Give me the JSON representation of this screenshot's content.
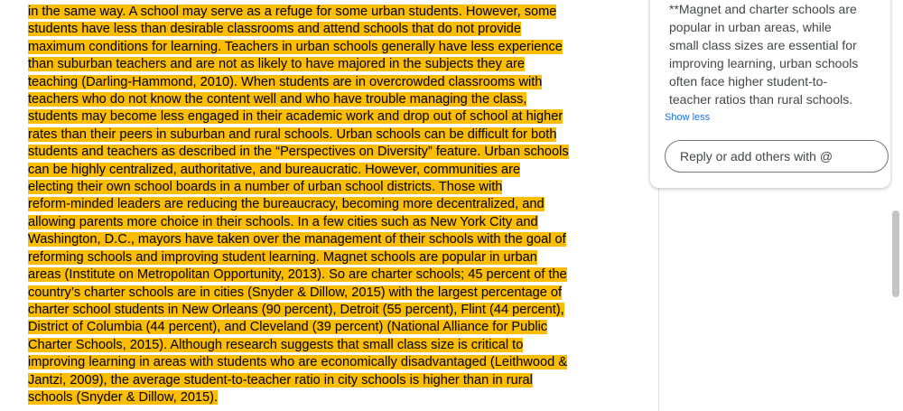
{
  "document": {
    "lines": [
      "in the same way. A school may serve as a refuge for some urban students. However, some",
      "students have less than desirable classrooms and attend schools that do not provide",
      "maximum conditions for learning. Teachers in urban schools generally have less experience",
      "than suburban teachers and are not as likely to have majored in the subjects they are",
      "teaching (Darling-Hammond, 2010). When students are in overcrowded classrooms with",
      "teachers who do not know the content well and who have trouble managing the class,",
      "students may become less engaged in their academic work and drop out of school at higher",
      "rates than their peers in suburban and rural schools. Urban schools can be difficult for both",
      "students and teachers as described in the “Perspectives on Diversity” feature. Urban schools",
      "can be highly centralized, authoritative, and bureaucratic. However, communities are",
      "electing their own school boards in a number of urban school districts. Those with",
      "reform-minded leaders are reducing the bureaucracy, becoming more decentralized, and",
      "allowing parents more choice in their schools. In a few cities such as New York City and",
      "Washington, D.C., mayors have taken over the management of their schools with the goal of",
      "reforming schools and improving student learning. Magnet schools are popular in urban",
      "areas (Institute on Metropolitan Opportunity, 2013). So are charter schools; 45 percent of the",
      "country’s charter schools are in cities (Snyder & Dillow, 2015) with the largest percentage of",
      "charter school students in New Orleans (90 percent), Detroit (55 percent), Flint (44 percent),",
      "District of Columbia (44 percent), and Cleveland (39 percent) (National Alliance for Public",
      "Charter Schools, 2015). Although research suggests that small class size is critical to",
      "improving learning in areas with students who are economically disadvantaged (Leithwood &",
      "Jantzi, 2009), the average student-to-teacher ratio in city schools is higher than in rural",
      "schools (Snyder & Dillow, 2015)."
    ]
  },
  "comment": {
    "lines": [
      "**Magnet and charter schools are",
      "popular in urban areas, while",
      "small class sizes are essential for",
      "improving learning, urban schools",
      "often face higher student-to-",
      "teacher ratios than rural schools."
    ],
    "toggle": "Show less",
    "reply_placeholder": "Reply or add others with @"
  }
}
